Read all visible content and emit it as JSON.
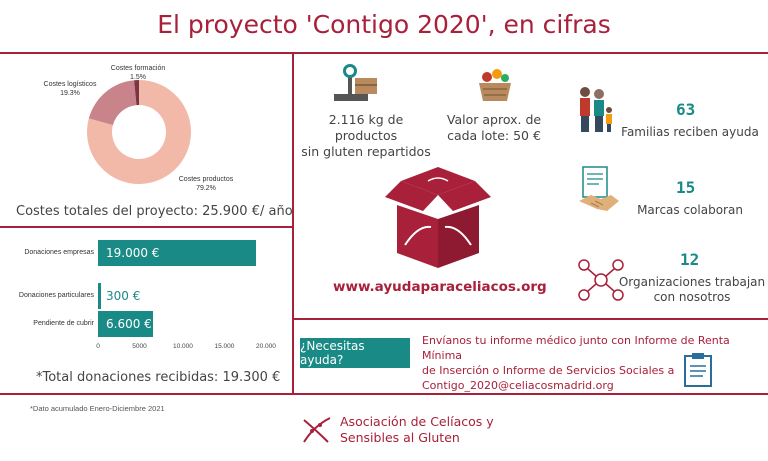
{
  "title": "El proyecto 'Contigo 2020', en cifras",
  "colors": {
    "accent": "#a8203a",
    "teal": "#1a8a86",
    "pie_main": "#f2b9a9",
    "pie_log": "#c8848a",
    "pie_form": "#7a3545"
  },
  "costs_chart": {
    "slices": [
      {
        "label": "Costes productos",
        "pct": "79.2%"
      },
      {
        "label": "Costes logísticos",
        "pct": "19.3%"
      },
      {
        "label": "Costes formación",
        "pct": "1.5%"
      }
    ],
    "total": "Costes totales del proyecto: 25.900 €/ año"
  },
  "chart_data": {
    "type": "bar",
    "orientation": "horizontal",
    "categories": [
      "Donaciones empresas",
      "Donaciones particulares",
      "Pendiente de cubrir"
    ],
    "values": [
      19000,
      300,
      6600
    ],
    "value_labels": [
      "19.000 €",
      "300 €",
      "6.600 €"
    ],
    "xlim": [
      0,
      20000
    ],
    "xticks": [
      "0",
      "5000",
      "10.000",
      "15.000",
      "20.000"
    ],
    "xtick_values": [
      0,
      5000,
      10000,
      15000,
      20000
    ],
    "total": "*Total donaciones recibidas: 19.300 €"
  },
  "stats": {
    "kg": "2.116 kg de productos\nsin gluten repartidos",
    "lote": "Valor aprox. de\ncada lote: 50 €",
    "families_num": "63",
    "families_label": "Familias reciben ayuda",
    "brands_num": "15",
    "brands_label": "Marcas colaboran",
    "orgs_num": "12",
    "orgs_label": "Organizaciones trabajan\ncon nosotros",
    "website": "www.ayudaparaceliacos.org"
  },
  "help": {
    "button": "¿Necesitas ayuda?",
    "text": "Envíanos tu informe médico junto con Informe de Renta Mínima\nde Inserción o Informe de Servicios Sociales a\nContigo_2020@celiacosmadrid.org"
  },
  "footnote": "*Dato acumulado Enero-Diciembre 2021",
  "logo": {
    "line1": "Asociación de Celíacos y",
    "line2": "Sensibles al Gluten"
  },
  "icons": [
    "scale-icon",
    "basket-icon",
    "box-logo-icon",
    "family-icon",
    "handshake-icon",
    "network-icon",
    "clipboard-icon",
    "wheat-logo-icon"
  ]
}
